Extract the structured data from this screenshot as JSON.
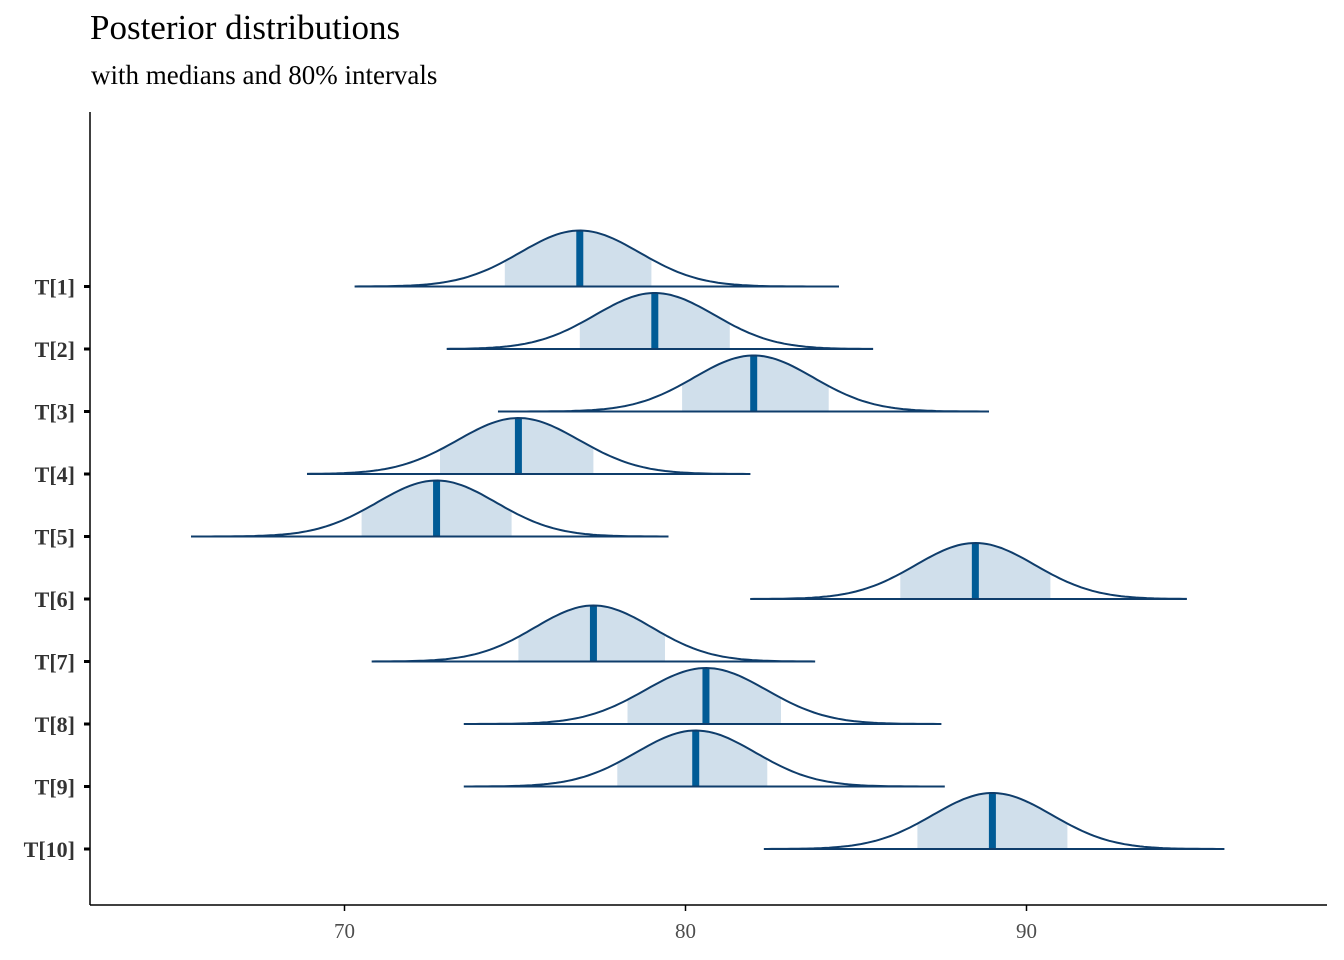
{
  "title": "Posterior distributions",
  "subtitle": "with medians and 80% intervals",
  "colors": {
    "outline": "#0f3d6b",
    "interval_fill": "#d0dfeb",
    "median": "#005b96",
    "axis": "#000000"
  },
  "chart_data": {
    "type": "area",
    "title": "Posterior distributions",
    "subtitle": "with medians and 80% intervals",
    "xlabel": "",
    "ylabel": "",
    "xlim": [
      62.5,
      97.5
    ],
    "x_ticks": [
      70,
      80,
      90
    ],
    "grid": false,
    "series": [
      {
        "name": "T[1]",
        "median": 76.9,
        "interval": [
          74.7,
          79.0
        ],
        "range": [
          70.3,
          84.5
        ],
        "sd": 1.75
      },
      {
        "name": "T[2]",
        "median": 79.1,
        "interval": [
          76.9,
          81.3
        ],
        "range": [
          73.0,
          85.5
        ],
        "sd": 1.75
      },
      {
        "name": "T[3]",
        "median": 82.0,
        "interval": [
          79.9,
          84.2
        ],
        "range": [
          74.5,
          88.9
        ],
        "sd": 1.75
      },
      {
        "name": "T[4]",
        "median": 75.1,
        "interval": [
          72.8,
          77.3
        ],
        "range": [
          68.9,
          81.9
        ],
        "sd": 1.78
      },
      {
        "name": "T[5]",
        "median": 72.7,
        "interval": [
          70.5,
          74.9
        ],
        "range": [
          65.5,
          79.5
        ],
        "sd": 1.75
      },
      {
        "name": "T[6]",
        "median": 88.5,
        "interval": [
          86.3,
          90.7
        ],
        "range": [
          81.9,
          94.7
        ],
        "sd": 1.75
      },
      {
        "name": "T[7]",
        "median": 77.3,
        "interval": [
          75.1,
          79.4
        ],
        "range": [
          70.8,
          83.8
        ],
        "sd": 1.72
      },
      {
        "name": "T[8]",
        "median": 80.6,
        "interval": [
          78.3,
          82.8
        ],
        "range": [
          73.5,
          87.5
        ],
        "sd": 1.78
      },
      {
        "name": "T[9]",
        "median": 80.3,
        "interval": [
          78.0,
          82.4
        ],
        "range": [
          73.5,
          87.6
        ],
        "sd": 1.75
      },
      {
        "name": "T[10]",
        "median": 89.0,
        "interval": [
          86.8,
          91.2
        ],
        "range": [
          82.3,
          95.8
        ],
        "sd": 1.75
      }
    ]
  }
}
